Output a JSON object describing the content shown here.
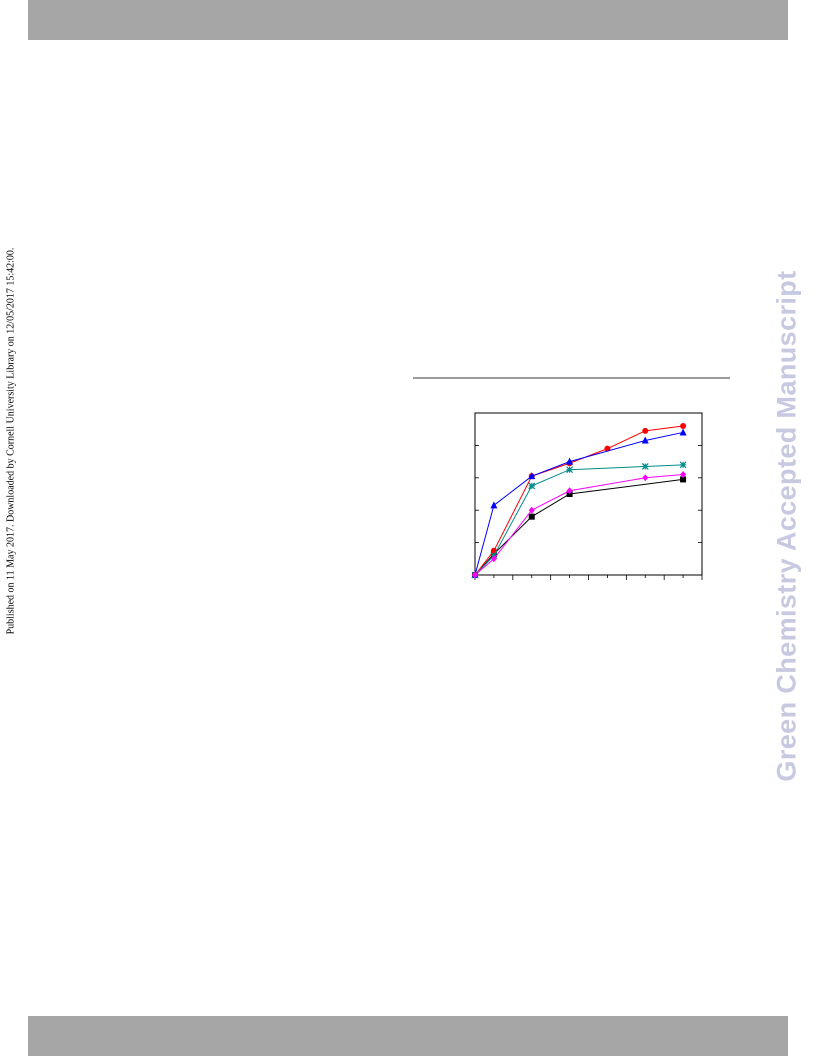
{
  "header": {
    "color": "#a6a6a6"
  },
  "footer": {
    "color": "#a6a6a6"
  },
  "side_note": {
    "text": "Published on 11 May 2017. Downloaded by Cornell University Library on 12/05/2017 15:42:00."
  },
  "watermark": {
    "text": "Green Chemistry Accepted Manuscript",
    "color": "#c6c9e0"
  },
  "chart_data": {
    "type": "line",
    "title": "",
    "xlabel": "",
    "ylabel": "",
    "xlim": [
      0,
      12
    ],
    "ylim": [
      0,
      1
    ],
    "grid": false,
    "legend": "none",
    "series": [
      {
        "color": "#000000",
        "marker": "square",
        "x": [
          0,
          1,
          3,
          5,
          11
        ],
        "y": [
          0.0,
          0.13,
          0.36,
          0.5,
          0.59
        ]
      },
      {
        "color": "#ff0000",
        "marker": "circle",
        "x": [
          0,
          1,
          3,
          5,
          7,
          9,
          11
        ],
        "y": [
          0.0,
          0.15,
          0.61,
          0.69,
          0.78,
          0.89,
          0.92
        ]
      },
      {
        "color": "#0000ff",
        "marker": "triangle",
        "x": [
          0,
          1,
          3,
          5,
          9,
          11
        ],
        "y": [
          0.0,
          0.43,
          0.61,
          0.7,
          0.83,
          0.88
        ]
      },
      {
        "color": "#008b8b",
        "marker": "star",
        "x": [
          0,
          1,
          3,
          5,
          9,
          11
        ],
        "y": [
          0.0,
          0.12,
          0.55,
          0.65,
          0.67,
          0.68
        ]
      },
      {
        "color": "#ff00ff",
        "marker": "diamond",
        "x": [
          0,
          1,
          3,
          5,
          9,
          11
        ],
        "y": [
          0.0,
          0.1,
          0.4,
          0.52,
          0.6,
          0.62
        ]
      }
    ]
  }
}
